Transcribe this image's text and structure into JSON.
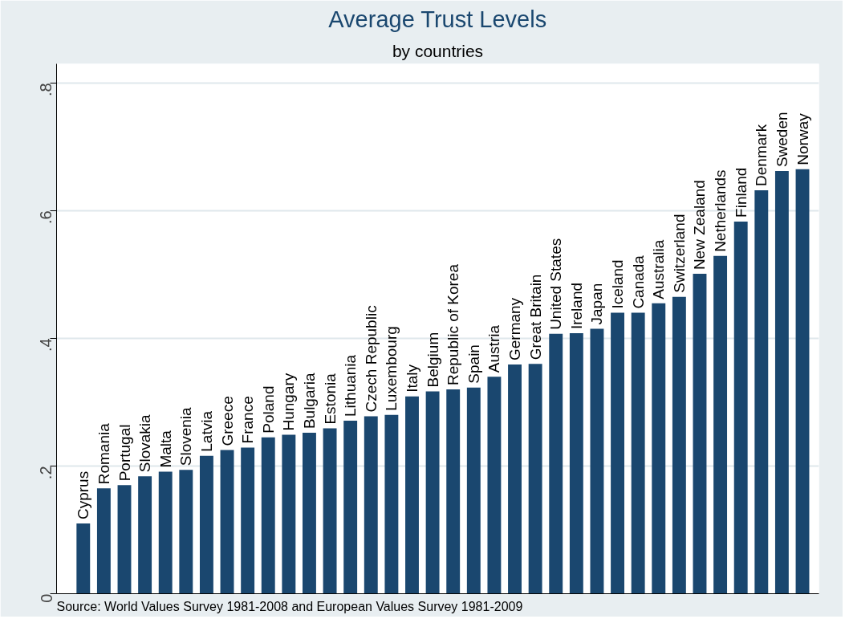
{
  "chart_data": {
    "type": "bar",
    "title": "Average Trust Levels",
    "subtitle": "by countries",
    "categories": [
      "Cyprus",
      "Romania",
      "Portugal",
      "Slovakia",
      "Malta",
      "Slovenia",
      "Latvia",
      "Greece",
      "France",
      "Poland",
      "Hungary",
      "Bulgaria",
      "Estonia",
      "Lithuania",
      "Czech Republic",
      "Luxembourg",
      "Italy",
      "Belgium",
      "Republic of Korea",
      "Spain",
      "Austria",
      "Germany",
      "Great Britain",
      "United States",
      "Ireland",
      "Japan",
      "Iceland",
      "Canada",
      "Australia",
      "Switzerland",
      "New Zealand",
      "Netherlands",
      "Finland",
      "Denmark",
      "Sweden",
      "Norway"
    ],
    "values": [
      0.11,
      0.165,
      0.17,
      0.184,
      0.191,
      0.194,
      0.216,
      0.225,
      0.229,
      0.245,
      0.249,
      0.252,
      0.259,
      0.271,
      0.278,
      0.28,
      0.309,
      0.317,
      0.32,
      0.323,
      0.34,
      0.359,
      0.36,
      0.407,
      0.408,
      0.415,
      0.44,
      0.44,
      0.455,
      0.465,
      0.501,
      0.529,
      0.583,
      0.632,
      0.662,
      0.665
    ],
    "color": "#1a476f",
    "ylim": [
      0,
      0.83
    ],
    "yticks": [
      {
        "value": 0,
        "label": "0"
      },
      {
        "value": 0.2,
        "label": ".2"
      },
      {
        "value": 0.4,
        "label": ".4"
      },
      {
        "value": 0.6,
        "label": ".6"
      },
      {
        "value": 0.8,
        "label": ".8"
      }
    ],
    "grid": "y",
    "tick_labels": "y",
    "annotations": [
      "Source: World Values Survey 1981-2008 and European Values Survey 1981-2009"
    ]
  }
}
